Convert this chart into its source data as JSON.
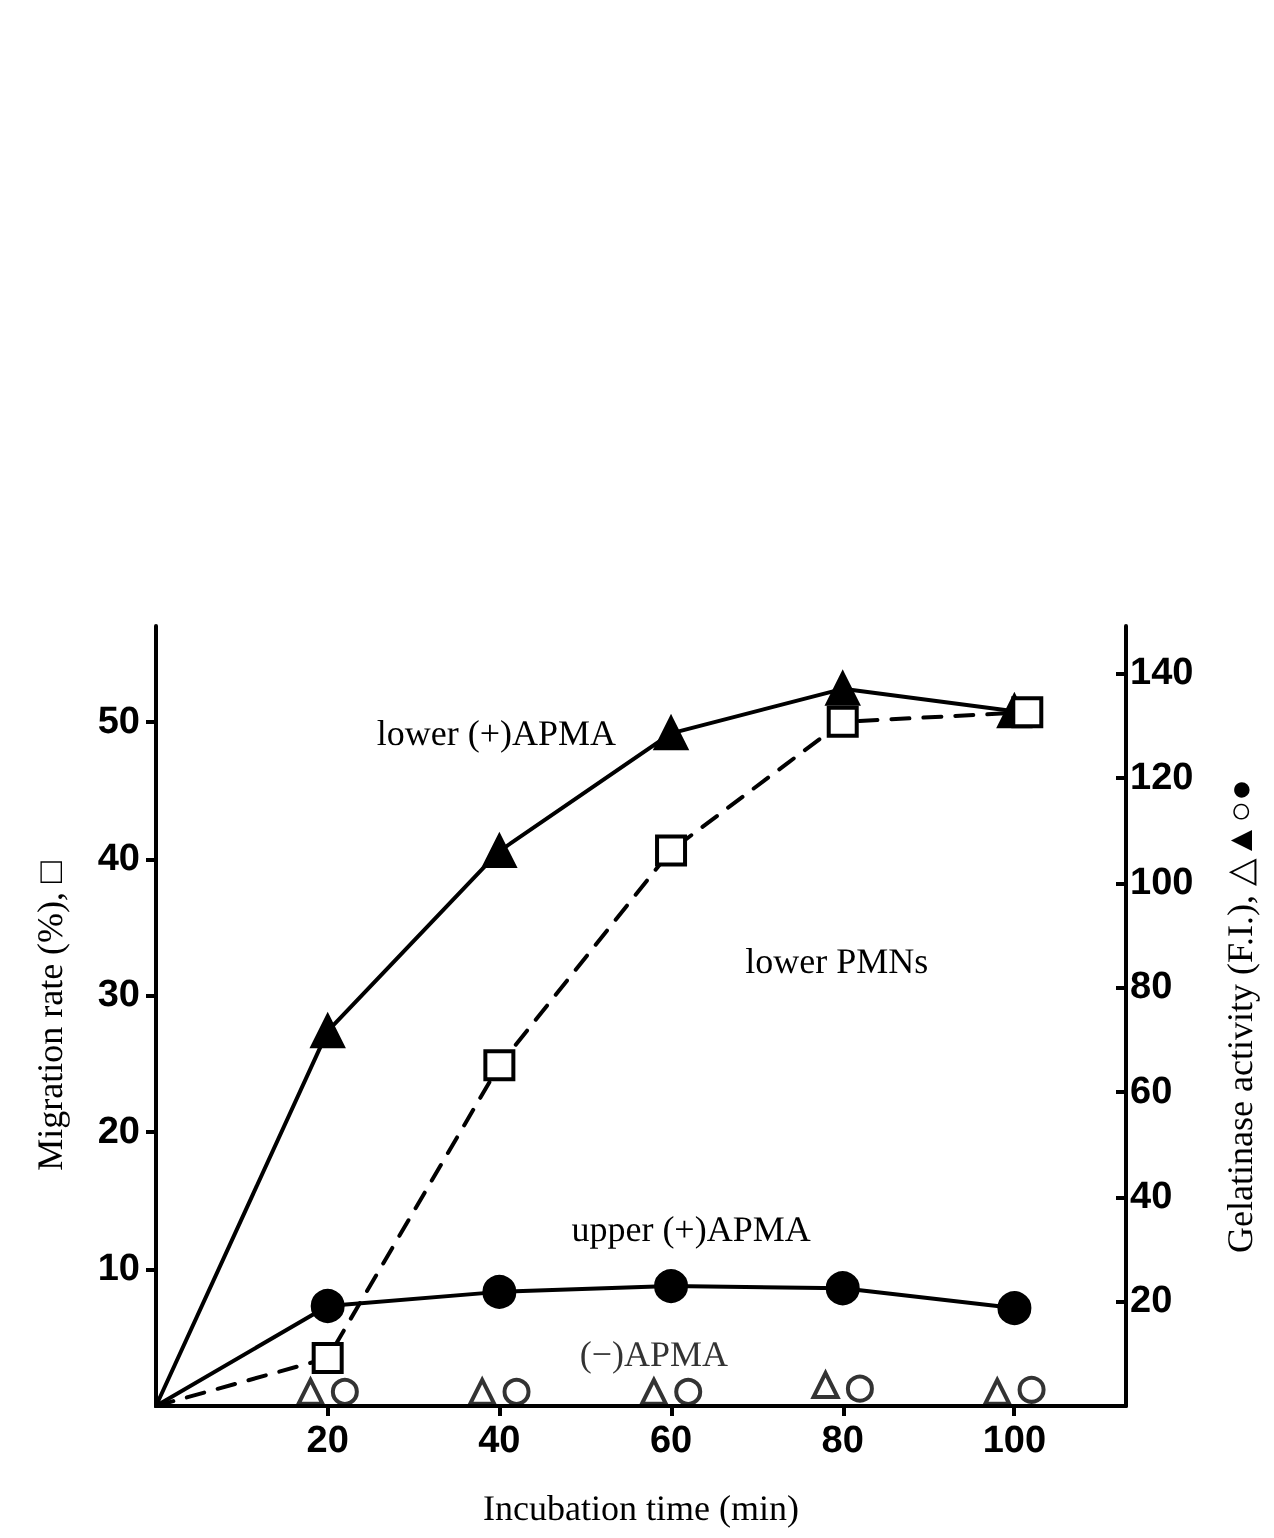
{
  "chart_data": {
    "type": "line",
    "xlabel": "Incubation time (min)",
    "ylabel": "Migration rate (%), □",
    "y2label": "Gelatinase activity (F.I.), △▲○●",
    "xlim": [
      0,
      113
    ],
    "xticks": [
      20,
      40,
      60,
      80,
      100
    ],
    "ylim": [
      0,
      57
    ],
    "yticks": [
      10,
      20,
      30,
      40,
      50
    ],
    "y2lim": [
      0,
      149
    ],
    "y2ticks": [
      20,
      40,
      60,
      80,
      100,
      120,
      140
    ],
    "grid": false,
    "legend": false,
    "series": [
      {
        "name": "lower (+)APMA",
        "axis": "y2",
        "color": "#000000",
        "marker": "triangle",
        "line_style": "solid",
        "x": [
          0,
          20,
          40,
          60,
          80,
          100
        ],
        "values": [
          0,
          71.6,
          106,
          128.5,
          137,
          132.7
        ]
      },
      {
        "name": "lower PMNs",
        "axis": "y",
        "color": "#000000",
        "marker": "square",
        "line_style": "dashed",
        "x": [
          0,
          20,
          40,
          60,
          80,
          101.5
        ],
        "values": [
          0,
          3.5,
          24.9,
          40.6,
          50,
          50.7
        ]
      },
      {
        "name": "upper (+)APMA",
        "axis": "y2",
        "color": "#000000",
        "marker": "circle",
        "line_style": "solid",
        "x": [
          0,
          20,
          40,
          60,
          80,
          100
        ],
        "values": [
          0,
          19.1,
          21.8,
          22.9,
          22.5,
          18.7
        ]
      },
      {
        "name": "(−)APMA",
        "type": "scatter",
        "axis": "y2",
        "color": "#ffffff",
        "marker": "triangle",
        "x": [
          18,
          38,
          58,
          78,
          98
        ],
        "values": [
          2.7,
          2.7,
          2.7,
          4,
          2.7
        ]
      },
      {
        "type": "scatter",
        "axis": "y2",
        "color": "#ffffff",
        "marker": "circle",
        "x": [
          22,
          42,
          62,
          82,
          102
        ],
        "values": [
          2.7,
          2.7,
          2.7,
          3.3,
          3.1
        ]
      }
    ]
  }
}
